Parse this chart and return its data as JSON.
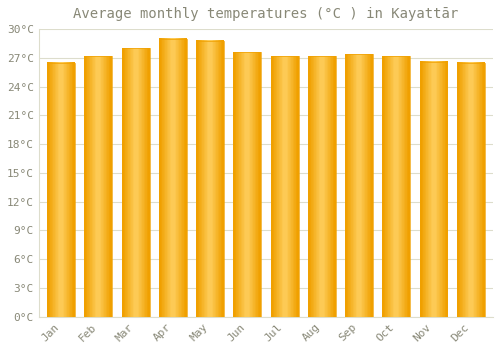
{
  "title": "Average monthly temperatures (°C ) in Kayattār",
  "months": [
    "Jan",
    "Feb",
    "Mar",
    "Apr",
    "May",
    "Jun",
    "Jul",
    "Aug",
    "Sep",
    "Oct",
    "Nov",
    "Dec"
  ],
  "values": [
    26.5,
    27.2,
    28.0,
    29.0,
    28.8,
    27.6,
    27.2,
    27.2,
    27.4,
    27.2,
    26.6,
    26.5
  ],
  "bar_color_center": "#FFD060",
  "bar_color_edge": "#F0A000",
  "background_color": "#ffffff",
  "grid_color": "#ddddcc",
  "text_color": "#888877",
  "ylim": [
    0,
    30
  ],
  "yticks": [
    0,
    3,
    6,
    9,
    12,
    15,
    18,
    21,
    24,
    27,
    30
  ],
  "ytick_labels": [
    "0°C",
    "3°C",
    "6°C",
    "9°C",
    "12°C",
    "15°C",
    "18°C",
    "21°C",
    "24°C",
    "27°C",
    "30°C"
  ],
  "title_fontsize": 10,
  "tick_fontsize": 8,
  "font_family": "monospace"
}
